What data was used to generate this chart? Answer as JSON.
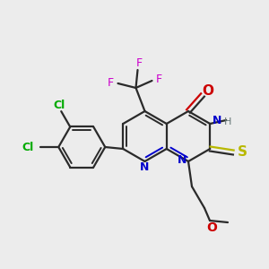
{
  "background_color": "#ececec",
  "bond_color": "#2a2a2a",
  "colors": {
    "N": "#0000cc",
    "O": "#cc0000",
    "S": "#b8b800",
    "F": "#cc00cc",
    "Cl": "#00aa00",
    "C": "#2a2a2a",
    "H": "#667777"
  },
  "figsize": [
    3.0,
    3.0
  ],
  "dpi": 100
}
